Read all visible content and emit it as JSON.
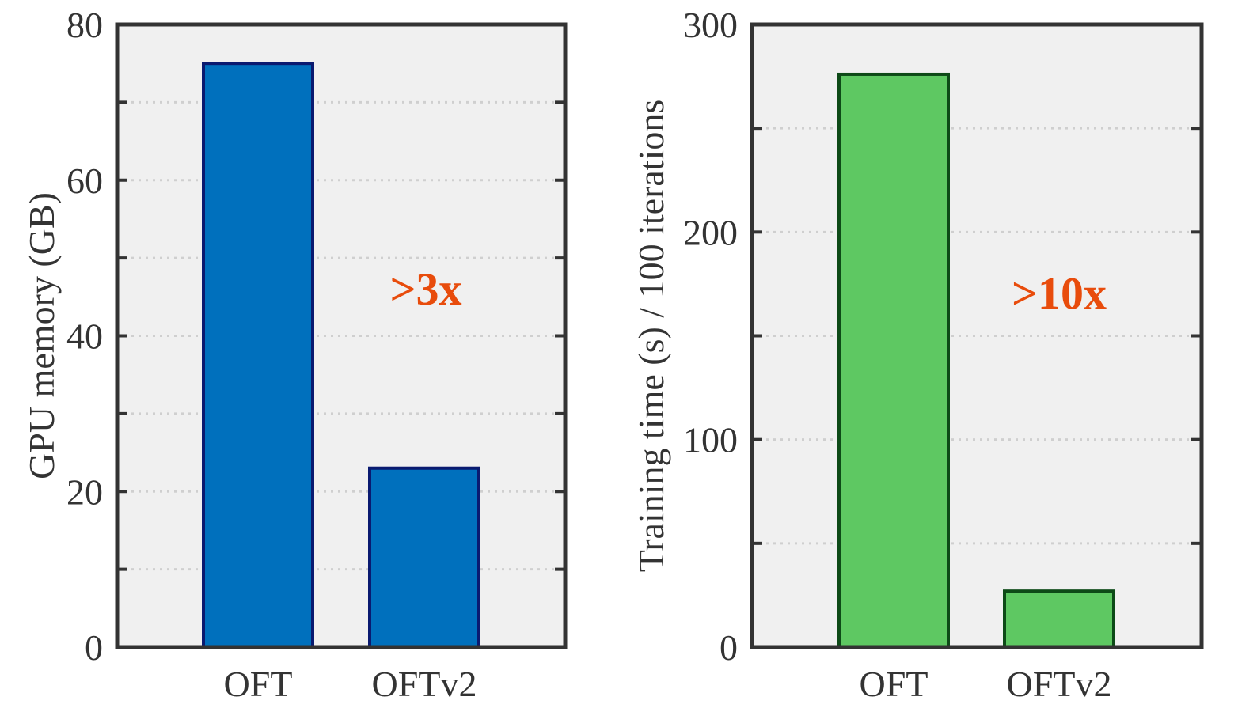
{
  "chart_data": [
    {
      "type": "bar",
      "categories": [
        "OFT",
        "OFTv2"
      ],
      "values": [
        75,
        23
      ],
      "ylabel": "GPU memory (GB)",
      "xlabel": "",
      "ylim": [
        0,
        80
      ],
      "yticks": [
        0,
        20,
        40,
        60,
        80
      ],
      "ytick_labels": [
        "0",
        "20",
        "40",
        "60",
        "80"
      ],
      "grid_lines": [
        10,
        20,
        30,
        40,
        50,
        60,
        70
      ],
      "annotation": ">3x",
      "bar_color": "#0070bd",
      "bar_edge_color": "#0a1a70",
      "annotation_color": "#e84c0c",
      "annotation_at": {
        "x": 1.0,
        "y": 44
      }
    },
    {
      "type": "bar",
      "categories": [
        "OFT",
        "OFTv2"
      ],
      "values": [
        276,
        27
      ],
      "ylabel": "Training time (s) / 100 iterations",
      "xlabel": "",
      "ylim": [
        0,
        300
      ],
      "yticks": [
        0,
        100,
        200,
        300
      ],
      "ytick_labels": [
        "0",
        "100",
        "200",
        "300"
      ],
      "grid_lines": [
        50,
        100,
        150,
        200,
        250
      ],
      "annotation": ">10x",
      "bar_color": "#5ec862",
      "bar_edge_color": "#0d4a17",
      "annotation_color": "#e84c0c",
      "annotation_at": {
        "x": 1.0,
        "y": 163
      }
    }
  ]
}
